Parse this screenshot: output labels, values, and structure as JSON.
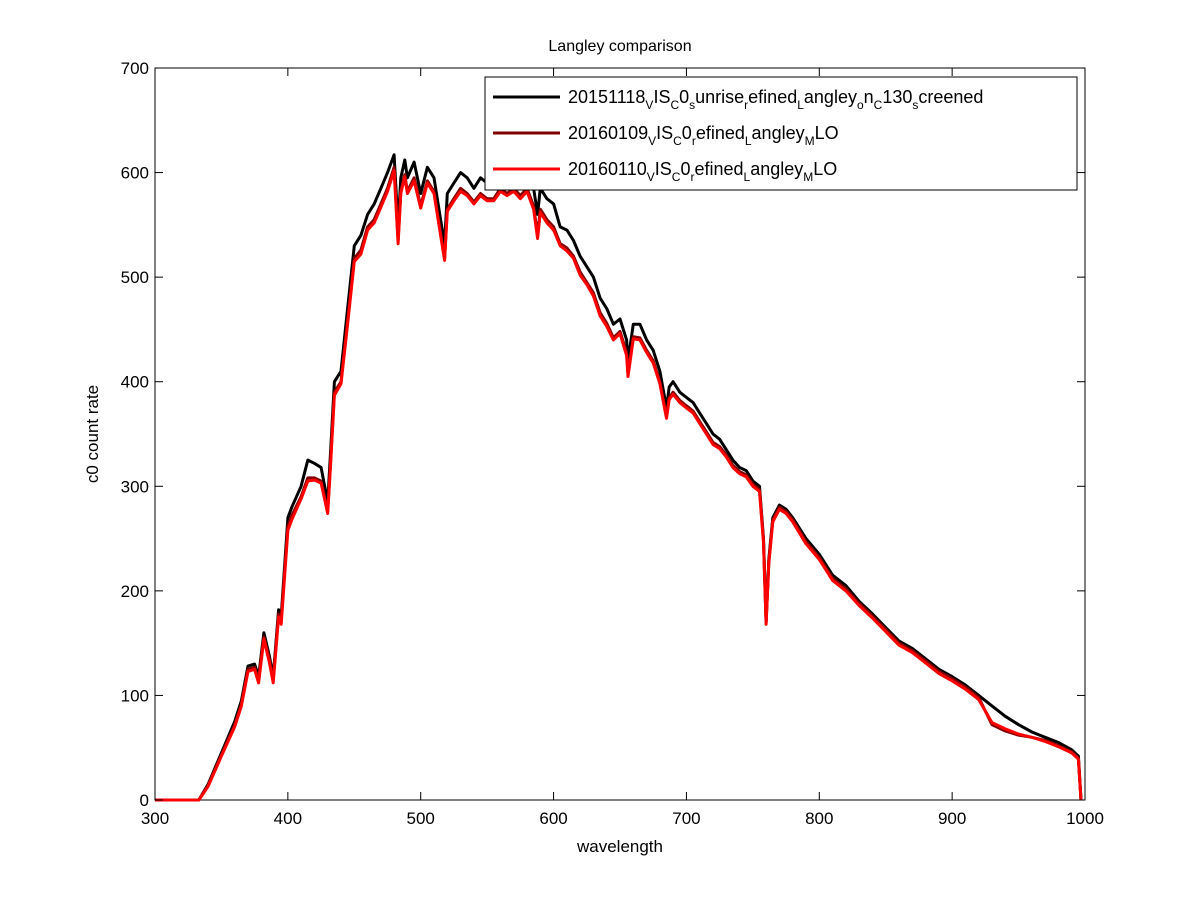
{
  "chart_data": {
    "type": "line",
    "title": "Langley comparison",
    "xlabel": "wavelength",
    "ylabel": "c0 count rate",
    "xlim": [
      300,
      1000
    ],
    "ylim": [
      0,
      700
    ],
    "xticks": [
      300,
      400,
      500,
      600,
      700,
      800,
      900,
      1000
    ],
    "yticks": [
      0,
      100,
      200,
      300,
      400,
      500,
      600,
      700
    ],
    "grid": false,
    "legend": "top-right",
    "series": [
      {
        "name": "20151118_VIS_C0_sunrise_refined_Langley_on_C130_screened",
        "legend_parts": [
          {
            "t": "20151118",
            "sub": false
          },
          {
            "t": "V",
            "sub": true
          },
          {
            "t": "IS",
            "sub": false
          },
          {
            "t": "C",
            "sub": true
          },
          {
            "t": "0",
            "sub": false
          },
          {
            "t": "s",
            "sub": true
          },
          {
            "t": "unrise",
            "sub": false
          },
          {
            "t": "r",
            "sub": true
          },
          {
            "t": "efined",
            "sub": false
          },
          {
            "t": "L",
            "sub": true
          },
          {
            "t": "angley",
            "sub": false
          },
          {
            "t": "o",
            "sub": true
          },
          {
            "t": "n",
            "sub": false
          },
          {
            "t": "C",
            "sub": true
          },
          {
            "t": "130",
            "sub": false
          },
          {
            "t": "s",
            "sub": true
          },
          {
            "t": "creened",
            "sub": false
          }
        ],
        "color": "#000000",
        "x": [
          300,
          333,
          340,
          350,
          360,
          365,
          370,
          375,
          378,
          382,
          386,
          389,
          393,
          395,
          400,
          403,
          410,
          415,
          420,
          425,
          430,
          432,
          435,
          440,
          445,
          450,
          455,
          460,
          465,
          470,
          475,
          480,
          483,
          485,
          488,
          490,
          495,
          500,
          505,
          510,
          515,
          518,
          520,
          525,
          530,
          535,
          540,
          545,
          550,
          555,
          560,
          565,
          570,
          575,
          580,
          585,
          588,
          590,
          595,
          600,
          605,
          610,
          615,
          620,
          625,
          630,
          635,
          640,
          645,
          650,
          655,
          656,
          660,
          665,
          670,
          675,
          680,
          685,
          687,
          690,
          695,
          700,
          705,
          710,
          715,
          720,
          725,
          730,
          735,
          740,
          745,
          750,
          755,
          758,
          760,
          762,
          765,
          770,
          775,
          780,
          790,
          800,
          810,
          820,
          830,
          840,
          850,
          860,
          870,
          880,
          890,
          900,
          910,
          920,
          930,
          940,
          950,
          960,
          970,
          980,
          990,
          995,
          997
        ],
        "y": [
          0,
          0,
          15,
          45,
          75,
          95,
          128,
          130,
          118,
          160,
          138,
          118,
          182,
          176,
          270,
          280,
          300,
          325,
          322,
          318,
          285,
          330,
          400,
          410,
          470,
          530,
          540,
          560,
          570,
          585,
          600,
          617,
          548,
          595,
          612,
          595,
          610,
          580,
          605,
          595,
          555,
          532,
          580,
          590,
          600,
          595,
          585,
          595,
          590,
          590,
          600,
          595,
          600,
          595,
          600,
          585,
          560,
          585,
          575,
          570,
          548,
          545,
          535,
          520,
          510,
          500,
          480,
          470,
          455,
          460,
          440,
          420,
          455,
          455,
          440,
          430,
          410,
          375,
          395,
          400,
          390,
          385,
          380,
          370,
          360,
          350,
          345,
          335,
          325,
          318,
          315,
          305,
          300,
          250,
          170,
          230,
          270,
          282,
          278,
          270,
          250,
          235,
          215,
          205,
          190,
          178,
          165,
          152,
          145,
          135,
          125,
          118,
          110,
          100,
          90,
          80,
          72,
          65,
          60,
          55,
          48,
          42,
          0
        ]
      },
      {
        "name": "20160109_VIS_C0_refined_Langley_MLO",
        "legend_parts": [
          {
            "t": "20160109",
            "sub": false
          },
          {
            "t": "V",
            "sub": true
          },
          {
            "t": "IS",
            "sub": false
          },
          {
            "t": "C",
            "sub": true
          },
          {
            "t": "0",
            "sub": false
          },
          {
            "t": "r",
            "sub": true
          },
          {
            "t": "efined",
            "sub": false
          },
          {
            "t": "L",
            "sub": true
          },
          {
            "t": "angley",
            "sub": false
          },
          {
            "t": "M",
            "sub": true
          },
          {
            "t": "LO",
            "sub": false
          }
        ],
        "color": "#800000",
        "x": [
          300,
          333,
          340,
          350,
          360,
          365,
          370,
          375,
          378,
          382,
          386,
          389,
          393,
          395,
          400,
          403,
          410,
          415,
          420,
          425,
          430,
          432,
          435,
          440,
          445,
          450,
          455,
          460,
          465,
          470,
          475,
          480,
          483,
          485,
          488,
          490,
          495,
          500,
          505,
          510,
          515,
          518,
          520,
          525,
          530,
          535,
          540,
          545,
          550,
          555,
          560,
          565,
          570,
          575,
          580,
          585,
          588,
          590,
          595,
          600,
          605,
          610,
          615,
          620,
          625,
          630,
          635,
          640,
          645,
          650,
          655,
          656,
          660,
          665,
          670,
          675,
          680,
          685,
          687,
          690,
          695,
          700,
          705,
          710,
          715,
          720,
          725,
          730,
          735,
          740,
          745,
          750,
          755,
          758,
          760,
          762,
          765,
          770,
          775,
          780,
          790,
          800,
          810,
          820,
          830,
          840,
          850,
          860,
          870,
          880,
          890,
          900,
          910,
          920,
          930,
          940,
          950,
          960,
          970,
          980,
          990,
          995,
          997
        ],
        "y": [
          0,
          0,
          14,
          43,
          72,
          92,
          125,
          127,
          115,
          156,
          135,
          115,
          178,
          172,
          262,
          272,
          290,
          308,
          308,
          305,
          276,
          320,
          390,
          400,
          458,
          518,
          526,
          548,
          555,
          570,
          585,
          605,
          535,
          582,
          598,
          582,
          595,
          568,
          592,
          582,
          542,
          518,
          565,
          575,
          585,
          580,
          572,
          580,
          575,
          575,
          585,
          580,
          585,
          578,
          585,
          568,
          540,
          565,
          555,
          548,
          532,
          528,
          520,
          505,
          495,
          485,
          466,
          456,
          442,
          448,
          428,
          408,
          443,
          442,
          430,
          420,
          400,
          367,
          385,
          390,
          382,
          377,
          372,
          362,
          352,
          342,
          338,
          330,
          320,
          314,
          311,
          302,
          297,
          248,
          170,
          228,
          268,
          280,
          276,
          268,
          247,
          232,
          212,
          202,
          188,
          176,
          163,
          150,
          143,
          133,
          123,
          116,
          108,
          98,
          72,
          66,
          62,
          60,
          57,
          52,
          46,
          40,
          0
        ]
      },
      {
        "name": "20160110_VIS_C0_refined_Langley_MLO",
        "legend_parts": [
          {
            "t": "20160110",
            "sub": false
          },
          {
            "t": "V",
            "sub": true
          },
          {
            "t": "IS",
            "sub": false
          },
          {
            "t": "C",
            "sub": true
          },
          {
            "t": "0",
            "sub": false
          },
          {
            "t": "r",
            "sub": true
          },
          {
            "t": "efined",
            "sub": false
          },
          {
            "t": "L",
            "sub": true
          },
          {
            "t": "angley",
            "sub": false
          },
          {
            "t": "M",
            "sub": true
          },
          {
            "t": "LO",
            "sub": false
          }
        ],
        "color": "#ff0000",
        "x": [
          300,
          333,
          340,
          350,
          360,
          365,
          370,
          375,
          378,
          382,
          386,
          389,
          393,
          395,
          400,
          403,
          410,
          415,
          420,
          425,
          430,
          432,
          435,
          440,
          445,
          450,
          455,
          460,
          465,
          470,
          475,
          480,
          483,
          485,
          488,
          490,
          495,
          500,
          505,
          510,
          515,
          518,
          520,
          525,
          530,
          535,
          540,
          545,
          550,
          555,
          560,
          565,
          570,
          575,
          580,
          585,
          588,
          590,
          595,
          600,
          605,
          610,
          615,
          620,
          625,
          630,
          635,
          640,
          645,
          650,
          655,
          656,
          660,
          665,
          670,
          675,
          680,
          685,
          687,
          690,
          695,
          700,
          705,
          710,
          715,
          720,
          725,
          730,
          735,
          740,
          745,
          750,
          755,
          758,
          760,
          762,
          765,
          770,
          775,
          780,
          790,
          800,
          810,
          820,
          830,
          840,
          850,
          860,
          870,
          880,
          890,
          900,
          910,
          920,
          930,
          940,
          950,
          960,
          970,
          980,
          990,
          995,
          997
        ],
        "y": [
          0,
          0,
          13,
          42,
          70,
          90,
          123,
          125,
          112,
          154,
          132,
          112,
          175,
          168,
          258,
          268,
          288,
          305,
          306,
          303,
          274,
          318,
          387,
          398,
          455,
          515,
          522,
          545,
          552,
          567,
          582,
          602,
          532,
          580,
          596,
          580,
          592,
          566,
          590,
          580,
          540,
          516,
          563,
          573,
          582,
          578,
          570,
          578,
          573,
          573,
          582,
          578,
          582,
          575,
          582,
          565,
          537,
          562,
          552,
          545,
          530,
          525,
          518,
          502,
          493,
          482,
          463,
          453,
          440,
          446,
          425,
          405,
          441,
          440,
          428,
          418,
          398,
          365,
          383,
          388,
          380,
          375,
          370,
          360,
          350,
          340,
          336,
          328,
          318,
          312,
          309,
          300,
          295,
          246,
          168,
          226,
          266,
          278,
          274,
          266,
          245,
          230,
          210,
          200,
          186,
          174,
          161,
          148,
          141,
          131,
          121,
          114,
          106,
          96,
          74,
          68,
          63,
          60,
          56,
          51,
          45,
          39,
          0
        ]
      }
    ]
  }
}
